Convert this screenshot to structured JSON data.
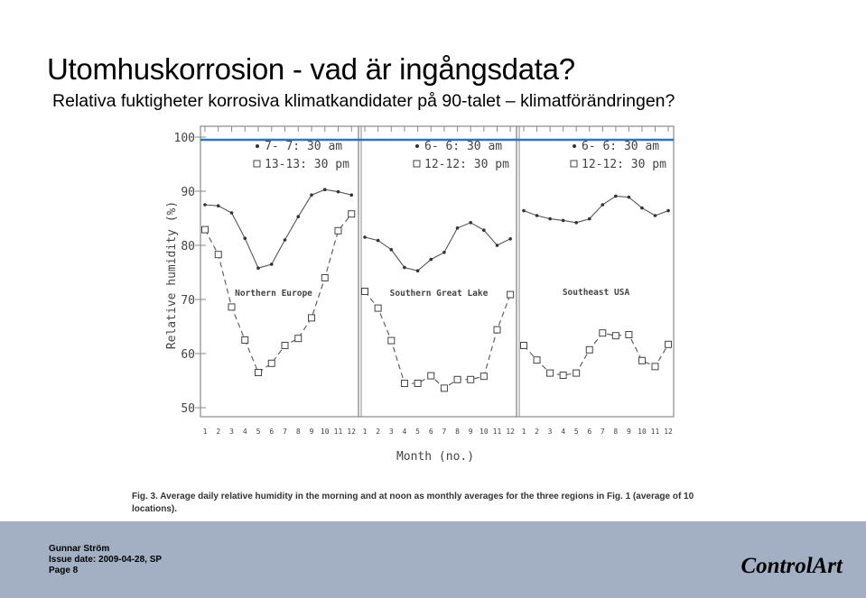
{
  "slide": {
    "title": "Utomhuskorrosion - vad är ingångsdata?",
    "subtitle": "Relativa fuktigheter korrosiva klimatkandidater på 90-talet – klimatförändringen?"
  },
  "footer": {
    "author": "Gunnar Ström",
    "issue": "Issue date: 2009-04-28, SP",
    "page": "Page 8",
    "logo": "ControlArt"
  },
  "colors": {
    "reference_line": "#2f74c0",
    "footer_bg": "#a3b0c4"
  },
  "chart_data": {
    "type": "line",
    "ylabel": "Relative humidity (%)",
    "xlabel": "Month (no.)",
    "ylim": [
      50,
      100
    ],
    "yticks": [
      "100",
      "90",
      "80",
      "70",
      "60",
      "50"
    ],
    "xticks": [
      "1",
      "2",
      "3",
      "4",
      "5",
      "6",
      "7",
      "8",
      "9",
      "10",
      "11",
      "12"
    ],
    "reference_line_value": 100,
    "caption": "Fig. 3. Average daily relative humidity in the morning and at noon as monthly averages for the three regions in Fig. 1 (average of 10 locations).",
    "panels": [
      {
        "label": "Northern Europe",
        "series": [
          {
            "name": "7- 7: 30 am",
            "marker": "dot",
            "values": [
              87.5,
              87.3,
              86.0,
              81.3,
              75.8,
              76.5,
              81.0,
              85.3,
              89.3,
              90.3,
              89.9,
              89.3
            ]
          },
          {
            "name": "13-13: 30 pm",
            "marker": "square",
            "values": [
              82.9,
              78.3,
              68.6,
              62.5,
              56.5,
              58.2,
              61.5,
              62.8,
              66.6,
              74.0,
              82.7,
              85.8
            ]
          }
        ]
      },
      {
        "label": "Southern Great Lake",
        "series": [
          {
            "name": "6- 6: 30 am",
            "marker": "dot",
            "values": [
              81.5,
              80.9,
              79.2,
              75.9,
              75.3,
              77.4,
              78.7,
              83.2,
              84.2,
              82.8,
              80.0,
              81.2
            ]
          },
          {
            "name": "12-12: 30 pm",
            "marker": "square",
            "values": [
              71.5,
              68.4,
              62.4,
              54.5,
              54.5,
              55.9,
              53.6,
              55.2,
              55.2,
              55.8,
              64.4,
              70.9
            ]
          }
        ]
      },
      {
        "label": "Southeast USA",
        "series": [
          {
            "name": "6- 6: 30 am",
            "marker": "dot",
            "values": [
              86.4,
              85.5,
              84.9,
              84.6,
              84.2,
              84.9,
              87.5,
              89.1,
              88.9,
              86.9,
              85.5,
              86.4
            ]
          },
          {
            "name": "12-12: 30 pm",
            "marker": "square",
            "values": [
              61.5,
              58.8,
              56.4,
              56.0,
              56.4,
              60.7,
              63.8,
              63.3,
              63.5,
              58.7,
              57.6,
              61.7
            ]
          }
        ]
      }
    ]
  }
}
